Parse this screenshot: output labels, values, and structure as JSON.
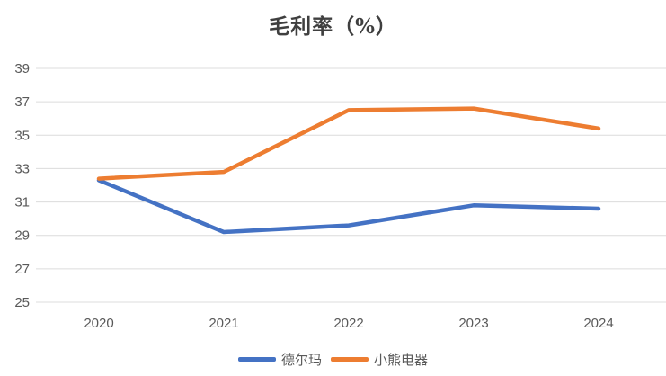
{
  "chart_data": {
    "type": "line",
    "title": "毛利率（%）",
    "categories": [
      "2020",
      "2021",
      "2022",
      "2023",
      "2024"
    ],
    "series": [
      {
        "name": "德尔玛",
        "color": "#4472C4",
        "values": [
          32.3,
          29.2,
          29.6,
          30.8,
          30.6
        ]
      },
      {
        "name": "小熊电器",
        "color": "#ED7D31",
        "values": [
          32.4,
          32.8,
          36.5,
          36.6,
          35.4
        ]
      }
    ],
    "xlabel": "",
    "ylabel": "",
    "ylim": [
      25,
      39
    ],
    "ytick_step": 2,
    "grid": "horizontal",
    "legend_position": "bottom",
    "colors": {
      "grid": "#dcdcdc",
      "tick_label": "#595959",
      "title": "#3f3f3f",
      "background": "#ffffff"
    }
  }
}
